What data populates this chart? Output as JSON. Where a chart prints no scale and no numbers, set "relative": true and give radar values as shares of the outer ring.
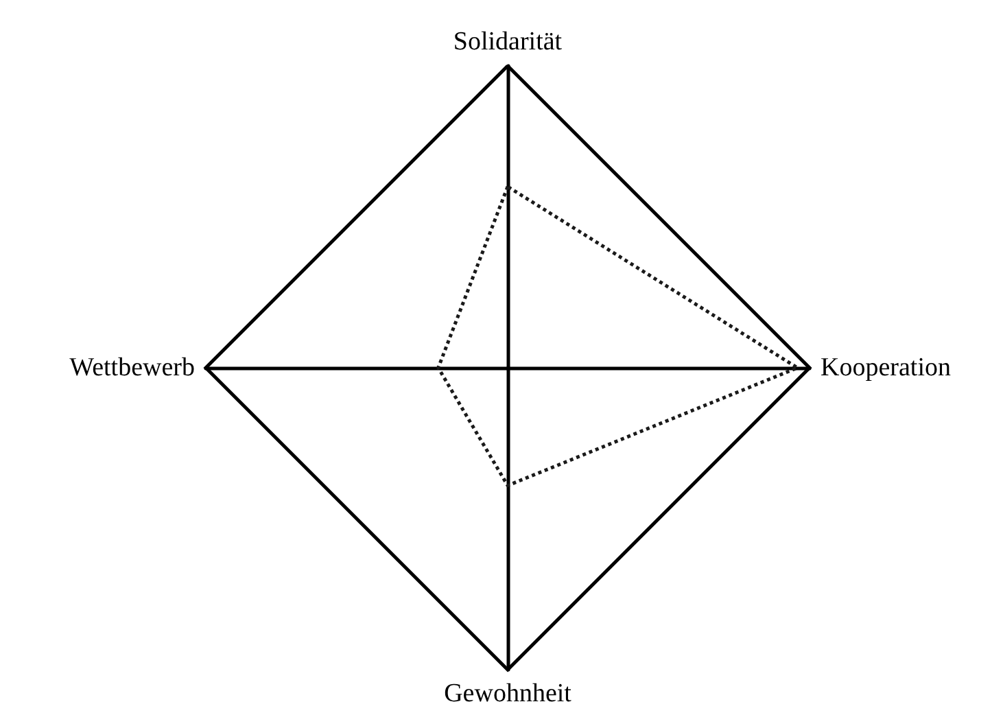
{
  "chart_data": {
    "type": "radar",
    "relative": true,
    "categories": [
      "Solidarität",
      "Kooperation",
      "Gewohnheit",
      "Wettbewerb"
    ],
    "series": [
      {
        "color": "#1a1a1a",
        "values": [
          0.6,
          0.96,
          0.39,
          0.23
        ]
      }
    ],
    "line_style": "dotted",
    "marker": "none"
  }
}
